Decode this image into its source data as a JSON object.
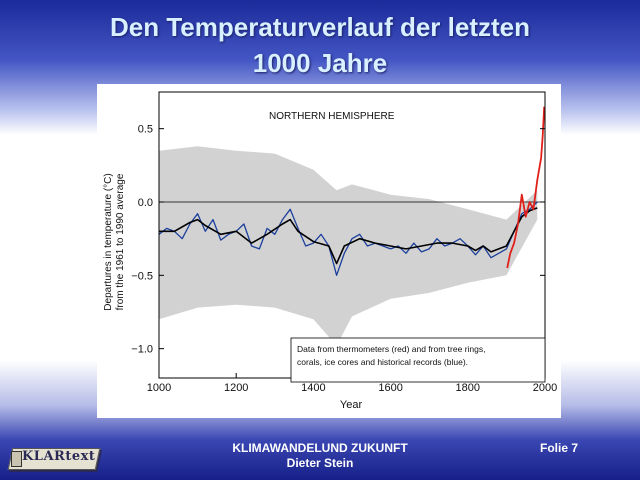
{
  "slide": {
    "title_line1": "Den Temperaturverlauf der letzten",
    "title_line2": "1000 Jahre",
    "footer_line1": "KLIMAWANDELUND ZUKUNFT",
    "footer_line2": "Dieter Stein",
    "slide_number": "Folie 7",
    "logo_text": "KLARtext"
  },
  "colors": {
    "title": "#d8f0ff",
    "proxy_blue": "#1c3f9c",
    "smoothed": "#000000",
    "thermometer_red": "#e0201a",
    "uncertainty_gray": "#d2d2d2"
  },
  "chart_data": {
    "type": "line",
    "title": "NORTHERN HEMISPHERE",
    "xlabel": "Year",
    "ylabel": "Departures in temperature (°C) from the 1961 to 1990 average",
    "ylabel_line1": "Departures in temperature (°C)",
    "ylabel_line2": "from the 1961 to 1990 average",
    "xlim": [
      1000,
      2000
    ],
    "ylim": [
      -1.2,
      0.75
    ],
    "x_ticks": [
      1000,
      1200,
      1400,
      1600,
      1800,
      2000
    ],
    "y_ticks": [
      0.5,
      0.0,
      -0.5,
      -1.0
    ],
    "y_tick_labels": [
      "0.5",
      "0.0",
      "−0.5",
      "−1.0"
    ],
    "annotation": [
      "Data from thermometers (red) and from tree rings,",
      "corals, ice cores and historical records (blue)."
    ],
    "grid": false,
    "reference_line": 0.0,
    "series": [
      {
        "name": "tree rings, corals, ice cores and historical records (blue)",
        "x": [
          1000,
          1020,
          1040,
          1060,
          1080,
          1100,
          1120,
          1140,
          1160,
          1180,
          1200,
          1220,
          1240,
          1260,
          1280,
          1300,
          1320,
          1340,
          1360,
          1380,
          1400,
          1420,
          1440,
          1460,
          1480,
          1500,
          1520,
          1540,
          1560,
          1580,
          1600,
          1620,
          1640,
          1660,
          1680,
          1700,
          1720,
          1740,
          1760,
          1780,
          1800,
          1820,
          1840,
          1860,
          1880,
          1900,
          1920,
          1940,
          1960,
          1980
        ],
        "y": [
          -0.22,
          -0.18,
          -0.2,
          -0.25,
          -0.15,
          -0.08,
          -0.2,
          -0.12,
          -0.26,
          -0.22,
          -0.2,
          -0.15,
          -0.3,
          -0.32,
          -0.18,
          -0.22,
          -0.12,
          -0.05,
          -0.18,
          -0.3,
          -0.28,
          -0.22,
          -0.3,
          -0.5,
          -0.35,
          -0.25,
          -0.22,
          -0.3,
          -0.28,
          -0.3,
          -0.32,
          -0.3,
          -0.35,
          -0.28,
          -0.34,
          -0.32,
          -0.25,
          -0.3,
          -0.28,
          -0.25,
          -0.3,
          -0.36,
          -0.3,
          -0.38,
          -0.35,
          -0.32,
          -0.2,
          -0.08,
          -0.05,
          0.0
        ]
      },
      {
        "name": "smoothed",
        "x": [
          1000,
          1040,
          1080,
          1100,
          1120,
          1160,
          1200,
          1240,
          1280,
          1320,
          1340,
          1360,
          1400,
          1440,
          1460,
          1480,
          1520,
          1560,
          1600,
          1640,
          1680,
          1720,
          1760,
          1800,
          1820,
          1840,
          1860,
          1880,
          1900,
          1920,
          1940,
          1960,
          1980
        ],
        "y": [
          -0.2,
          -0.2,
          -0.14,
          -0.12,
          -0.16,
          -0.22,
          -0.2,
          -0.28,
          -0.22,
          -0.15,
          -0.12,
          -0.2,
          -0.27,
          -0.3,
          -0.42,
          -0.3,
          -0.25,
          -0.28,
          -0.3,
          -0.32,
          -0.3,
          -0.28,
          -0.28,
          -0.3,
          -0.33,
          -0.3,
          -0.34,
          -0.32,
          -0.3,
          -0.2,
          -0.1,
          -0.06,
          -0.04
        ]
      },
      {
        "name": "thermometers (red)",
        "x": [
          1902,
          1910,
          1920,
          1930,
          1940,
          1950,
          1960,
          1970,
          1980,
          1990,
          1994,
          1998
        ],
        "y": [
          -0.45,
          -0.35,
          -0.28,
          -0.15,
          0.05,
          -0.1,
          0.0,
          -0.05,
          0.15,
          0.3,
          0.45,
          0.65
        ]
      }
    ],
    "uncertainty_band": {
      "x": [
        1000,
        1100,
        1200,
        1300,
        1400,
        1460,
        1500,
        1600,
        1700,
        1800,
        1900,
        1980
      ],
      "lower": [
        -0.8,
        -0.72,
        -0.7,
        -0.72,
        -0.8,
        -0.98,
        -0.78,
        -0.66,
        -0.62,
        -0.55,
        -0.5,
        -0.12
      ],
      "upper": [
        0.35,
        0.38,
        0.35,
        0.33,
        0.22,
        0.08,
        0.12,
        0.05,
        0.02,
        -0.05,
        -0.12,
        0.08
      ]
    }
  }
}
